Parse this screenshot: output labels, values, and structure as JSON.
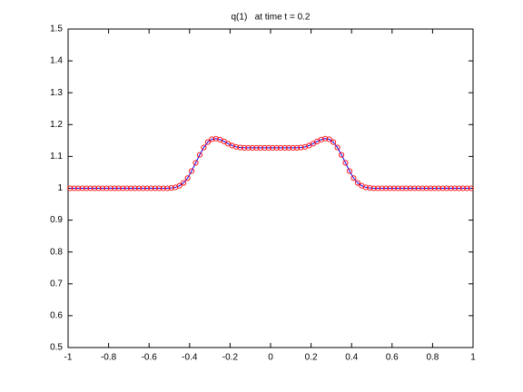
{
  "chart_data": {
    "type": "line",
    "title": "q(1)   at time t = 0.2",
    "x": [
      -0.99,
      -0.97,
      -0.95,
      -0.93,
      -0.91,
      -0.89,
      -0.87,
      -0.85,
      -0.83,
      -0.81,
      -0.79,
      -0.77,
      -0.75,
      -0.73,
      -0.71,
      -0.69,
      -0.67,
      -0.65,
      -0.63,
      -0.61,
      -0.59,
      -0.57,
      -0.55,
      -0.53,
      -0.51,
      -0.49,
      -0.47,
      -0.45,
      -0.43,
      -0.41,
      -0.39,
      -0.37,
      -0.35,
      -0.33,
      -0.31,
      -0.29,
      -0.27,
      -0.25,
      -0.23,
      -0.21,
      -0.19,
      -0.17,
      -0.15,
      -0.13,
      -0.11,
      -0.09,
      -0.07,
      -0.05,
      -0.03,
      -0.01,
      0.01,
      0.03,
      0.05,
      0.07,
      0.09,
      0.11,
      0.13,
      0.15,
      0.17,
      0.19,
      0.21,
      0.23,
      0.25,
      0.27,
      0.29,
      0.31,
      0.33,
      0.35,
      0.37,
      0.39,
      0.41,
      0.43,
      0.45,
      0.47,
      0.49,
      0.51,
      0.53,
      0.55,
      0.57,
      0.59,
      0.61,
      0.63,
      0.65,
      0.67,
      0.69,
      0.71,
      0.73,
      0.75,
      0.77,
      0.79,
      0.81,
      0.83,
      0.85,
      0.87,
      0.89,
      0.91,
      0.93,
      0.95,
      0.97,
      0.99
    ],
    "series": [
      {
        "color": "#0000ff",
        "marker": "none",
        "linestyle": "solid",
        "values": [
          1,
          1,
          1,
          1,
          1,
          1,
          1,
          1,
          1,
          1,
          1,
          1,
          1,
          1,
          1,
          1,
          1,
          1,
          1,
          1,
          1,
          1,
          1,
          1,
          1,
          1.001,
          1.003,
          1.008,
          1.017,
          1.032,
          1.054,
          1.08,
          1.105,
          1.128,
          1.145,
          1.154,
          1.156,
          1.153,
          1.147,
          1.14,
          1.134,
          1.13,
          1.128,
          1.127,
          1.127,
          1.127,
          1.127,
          1.127,
          1.127,
          1.127,
          1.127,
          1.127,
          1.127,
          1.127,
          1.127,
          1.127,
          1.127,
          1.128,
          1.13,
          1.134,
          1.14,
          1.147,
          1.153,
          1.156,
          1.154,
          1.145,
          1.128,
          1.105,
          1.08,
          1.054,
          1.032,
          1.017,
          1.008,
          1.003,
          1.001,
          1,
          1,
          1,
          1,
          1,
          1,
          1,
          1,
          1,
          1,
          1,
          1,
          1,
          1,
          1,
          1,
          1,
          1,
          1,
          1,
          1,
          1,
          1,
          1,
          1
        ]
      },
      {
        "color": "#ff0000",
        "marker": "circle",
        "linestyle": "none",
        "values": [
          1,
          1,
          1,
          1,
          1,
          1,
          1,
          1,
          1,
          1,
          1,
          1,
          1,
          1,
          1,
          1,
          1,
          1,
          1,
          1,
          1,
          1,
          1,
          1,
          1,
          1.001,
          1.003,
          1.008,
          1.017,
          1.032,
          1.054,
          1.08,
          1.105,
          1.128,
          1.145,
          1.154,
          1.156,
          1.153,
          1.147,
          1.14,
          1.134,
          1.13,
          1.128,
          1.127,
          1.127,
          1.127,
          1.127,
          1.127,
          1.127,
          1.127,
          1.127,
          1.127,
          1.127,
          1.127,
          1.127,
          1.127,
          1.127,
          1.128,
          1.13,
          1.134,
          1.14,
          1.147,
          1.153,
          1.156,
          1.154,
          1.145,
          1.128,
          1.105,
          1.08,
          1.054,
          1.032,
          1.017,
          1.008,
          1.003,
          1.001,
          1,
          1,
          1,
          1,
          1,
          1,
          1,
          1,
          1,
          1,
          1,
          1,
          1,
          1,
          1,
          1,
          1,
          1,
          1,
          1,
          1,
          1,
          1,
          1,
          1
        ]
      }
    ],
    "xlim": [
      -1,
      1
    ],
    "xticks": [
      -1,
      -0.8,
      -0.6,
      -0.4,
      -0.2,
      0,
      0.2,
      0.4,
      0.6,
      0.8,
      1
    ],
    "ylim": [
      0.5,
      1.5
    ],
    "yticks": [
      0.5,
      0.6,
      0.7,
      0.8,
      0.9,
      1,
      1.1,
      1.2,
      1.3,
      1.4,
      1.5
    ],
    "grid": false
  }
}
